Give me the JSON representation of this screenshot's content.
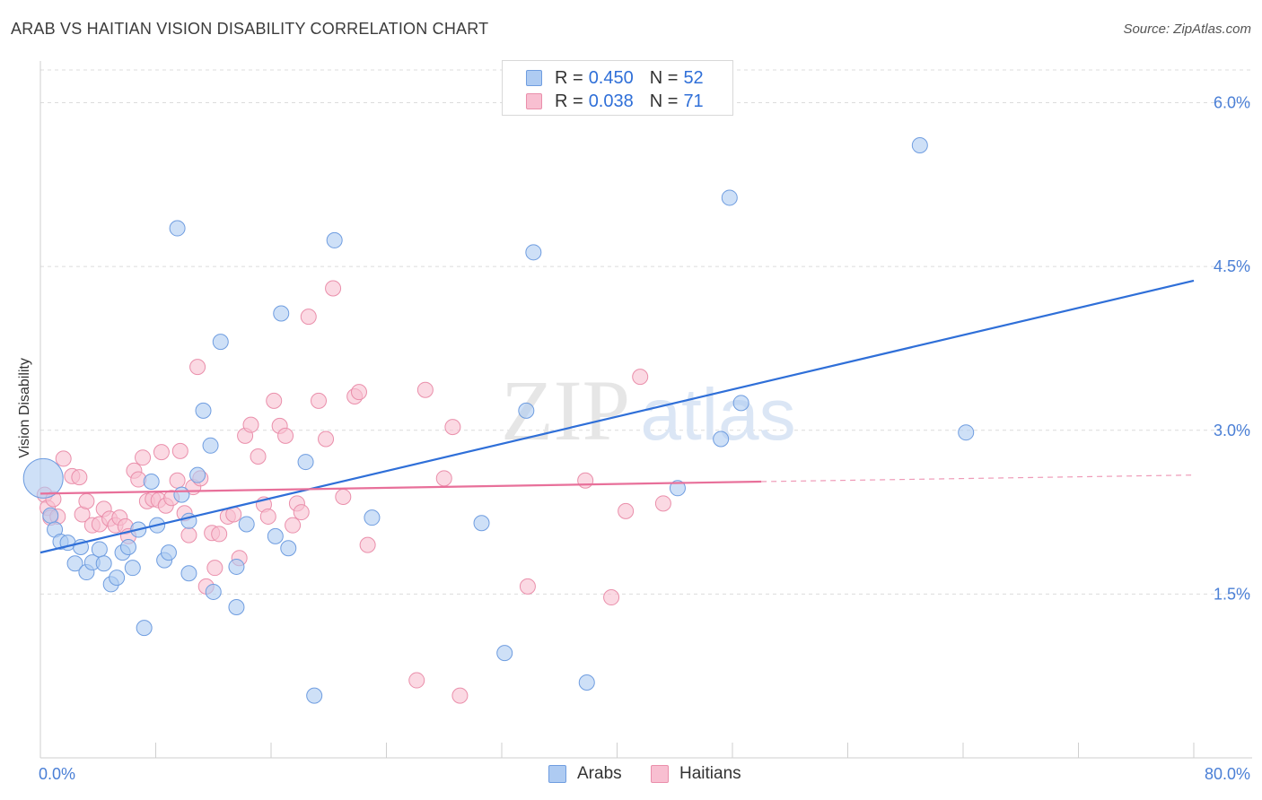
{
  "title": "ARAB VS HAITIAN VISION DISABILITY CORRELATION CHART",
  "source": "Source: ZipAtlas.com",
  "watermark": {
    "zip": "ZIP",
    "atlas": "atlas"
  },
  "legend": {
    "rows": [
      {
        "r_label": "R =",
        "r_value": "0.450",
        "n_label": "N =",
        "n_value": "52"
      },
      {
        "r_label": "R =",
        "r_value": "0.038",
        "n_label": "N =",
        "n_value": "71"
      }
    ],
    "bottom": [
      "Arabs",
      "Haitians"
    ]
  },
  "colors": {
    "arab_fill": "#aecbf2",
    "arab_stroke": "#6f9de0",
    "arab_line": "#2f6fd8",
    "haitian_fill": "#f8bfd1",
    "haitian_stroke": "#ea8fab",
    "haitian_line": "#e8709a",
    "grid": "#dcdcdc",
    "tick_label": "#4a7fd6"
  },
  "chart_data": {
    "type": "scatter",
    "title": "ARAB VS HAITIAN VISION DISABILITY CORRELATION CHART",
    "xlabel": "",
    "ylabel": "Vision Disability",
    "xlim": [
      0,
      80
    ],
    "ylim": [
      0,
      6.3
    ],
    "x_tick_labels": [
      "0.0%",
      "80.0%"
    ],
    "y_ticks": [
      1.5,
      3.0,
      4.5,
      6.0
    ],
    "y_tick_labels": [
      "1.5%",
      "3.0%",
      "4.5%",
      "6.0%"
    ],
    "grid": true,
    "legend_position": "top-center",
    "series": [
      {
        "name": "Arabs",
        "r": 0.45,
        "n": 52,
        "trend": {
          "x": [
            0,
            80
          ],
          "y": [
            1.88,
            4.37
          ]
        },
        "points": [
          [
            0.2,
            2.56
          ],
          [
            0.7,
            2.22
          ],
          [
            1.0,
            2.09
          ],
          [
            1.4,
            1.98
          ],
          [
            1.9,
            1.97
          ],
          [
            2.4,
            1.78
          ],
          [
            2.8,
            1.93
          ],
          [
            3.2,
            1.7
          ],
          [
            3.6,
            1.79
          ],
          [
            4.1,
            1.91
          ],
          [
            4.4,
            1.78
          ],
          [
            4.9,
            1.59
          ],
          [
            5.3,
            1.65
          ],
          [
            5.7,
            1.88
          ],
          [
            6.1,
            1.93
          ],
          [
            6.4,
            1.74
          ],
          [
            6.8,
            2.09
          ],
          [
            7.2,
            1.19
          ],
          [
            7.7,
            2.53
          ],
          [
            8.1,
            2.13
          ],
          [
            8.6,
            1.81
          ],
          [
            8.9,
            1.88
          ],
          [
            9.5,
            4.85
          ],
          [
            9.8,
            2.41
          ],
          [
            10.3,
            2.17
          ],
          [
            10.3,
            1.69
          ],
          [
            10.9,
            2.59
          ],
          [
            11.3,
            3.18
          ],
          [
            11.8,
            2.86
          ],
          [
            12.0,
            1.52
          ],
          [
            12.5,
            3.81
          ],
          [
            13.6,
            1.75
          ],
          [
            13.6,
            1.38
          ],
          [
            14.3,
            2.14
          ],
          [
            16.3,
            2.03
          ],
          [
            16.7,
            4.07
          ],
          [
            17.2,
            1.92
          ],
          [
            18.4,
            2.71
          ],
          [
            19.0,
            0.57
          ],
          [
            20.4,
            4.74
          ],
          [
            23.0,
            2.2
          ],
          [
            30.6,
            2.15
          ],
          [
            32.2,
            0.96
          ],
          [
            33.7,
            3.18
          ],
          [
            34.2,
            4.63
          ],
          [
            37.9,
            0.69
          ],
          [
            44.2,
            2.47
          ],
          [
            47.2,
            2.92
          ],
          [
            47.8,
            5.13
          ],
          [
            48.6,
            3.25
          ],
          [
            61.0,
            5.61
          ],
          [
            64.2,
            2.98
          ]
        ]
      },
      {
        "name": "Haitians",
        "r": 0.038,
        "n": 71,
        "trend": {
          "x": [
            0,
            50
          ],
          "y": [
            2.42,
            2.53
          ]
        },
        "trend_dashed": {
          "x": [
            50,
            80
          ],
          "y": [
            2.53,
            2.59
          ]
        },
        "points": [
          [
            0.3,
            2.41
          ],
          [
            0.5,
            2.29
          ],
          [
            0.7,
            2.2
          ],
          [
            0.9,
            2.37
          ],
          [
            1.2,
            2.21
          ],
          [
            1.6,
            2.74
          ],
          [
            2.2,
            2.58
          ],
          [
            2.7,
            2.57
          ],
          [
            2.9,
            2.23
          ],
          [
            3.2,
            2.35
          ],
          [
            3.6,
            2.13
          ],
          [
            4.1,
            2.14
          ],
          [
            4.4,
            2.28
          ],
          [
            4.8,
            2.19
          ],
          [
            5.2,
            2.13
          ],
          [
            5.5,
            2.2
          ],
          [
            5.9,
            2.12
          ],
          [
            6.1,
            2.03
          ],
          [
            6.5,
            2.63
          ],
          [
            6.8,
            2.55
          ],
          [
            7.1,
            2.75
          ],
          [
            7.4,
            2.35
          ],
          [
            7.8,
            2.37
          ],
          [
            8.2,
            2.36
          ],
          [
            8.4,
            2.8
          ],
          [
            8.7,
            2.31
          ],
          [
            9.1,
            2.38
          ],
          [
            9.5,
            2.54
          ],
          [
            9.7,
            2.81
          ],
          [
            10.0,
            2.24
          ],
          [
            10.3,
            2.04
          ],
          [
            10.6,
            2.48
          ],
          [
            10.9,
            3.58
          ],
          [
            11.1,
            2.56
          ],
          [
            11.5,
            1.57
          ],
          [
            11.9,
            2.06
          ],
          [
            12.1,
            1.74
          ],
          [
            12.4,
            2.05
          ],
          [
            13.0,
            2.21
          ],
          [
            13.4,
            2.23
          ],
          [
            13.8,
            1.83
          ],
          [
            14.2,
            2.95
          ],
          [
            14.6,
            3.05
          ],
          [
            15.1,
            2.76
          ],
          [
            15.5,
            2.32
          ],
          [
            15.8,
            2.21
          ],
          [
            16.2,
            3.27
          ],
          [
            16.6,
            3.04
          ],
          [
            17.0,
            2.95
          ],
          [
            17.5,
            2.13
          ],
          [
            17.8,
            2.33
          ],
          [
            18.1,
            2.25
          ],
          [
            18.6,
            4.04
          ],
          [
            19.3,
            3.27
          ],
          [
            19.8,
            2.92
          ],
          [
            20.3,
            4.3
          ],
          [
            21.0,
            2.39
          ],
          [
            21.8,
            3.31
          ],
          [
            22.1,
            3.35
          ],
          [
            22.7,
            1.95
          ],
          [
            26.1,
            0.71
          ],
          [
            26.7,
            3.37
          ],
          [
            28.0,
            2.56
          ],
          [
            28.6,
            3.03
          ],
          [
            29.1,
            0.57
          ],
          [
            33.8,
            1.57
          ],
          [
            37.8,
            2.54
          ],
          [
            39.6,
            1.47
          ],
          [
            40.6,
            2.26
          ],
          [
            41.6,
            3.49
          ],
          [
            43.2,
            2.33
          ]
        ]
      }
    ]
  }
}
